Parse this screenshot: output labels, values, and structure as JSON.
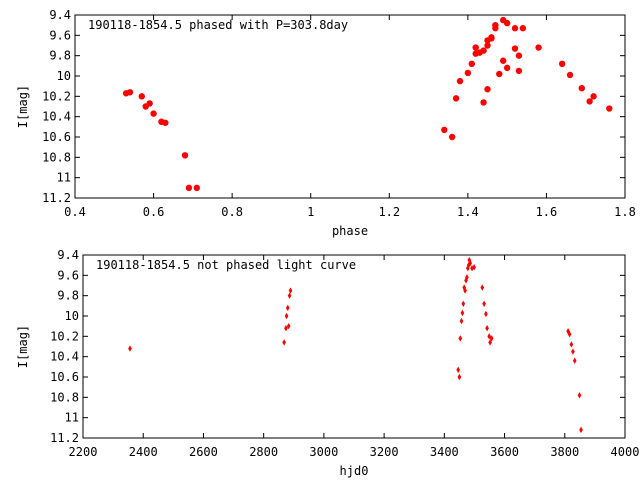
{
  "chart_data": [
    {
      "type": "scatter",
      "title": "190118-1854.5 phased with P=303.8day",
      "xlabel": "phase",
      "ylabel": "I[mag]",
      "xlim": [
        0.4,
        1.8
      ],
      "ylim": [
        9.4,
        11.2
      ],
      "y_inverted": true,
      "xticks": [
        0.4,
        0.6,
        0.8,
        1,
        1.2,
        1.4,
        1.6,
        1.8
      ],
      "xtick_labels": [
        "0.4",
        "0.6",
        "0.8",
        "1",
        "1.2",
        "1.4",
        "1.6",
        "1.8"
      ],
      "yticks": [
        9.4,
        9.6,
        9.8,
        10,
        10.2,
        10.4,
        10.6,
        10.8,
        11,
        11.2
      ],
      "ytick_labels": [
        "9.4",
        "9.6",
        "9.8",
        "10",
        "10.2",
        "10.4",
        "10.6",
        "10.8",
        "11",
        "11.2"
      ],
      "grid": false,
      "marker_color": "#ff0000",
      "marker": "filled-circle",
      "series": [
        {
          "x": [
            0.53,
            0.54,
            0.57,
            0.58,
            0.59,
            0.6,
            0.62,
            0.63,
            0.68,
            0.69,
            0.71,
            1.34,
            1.36,
            1.37,
            1.38,
            1.4,
            1.41,
            1.42,
            1.42,
            1.43,
            1.44,
            1.44,
            1.45,
            1.45,
            1.45,
            1.46,
            1.46,
            1.47,
            1.47,
            1.48,
            1.49,
            1.49,
            1.5,
            1.5,
            1.52,
            1.52,
            1.53,
            1.53,
            1.54,
            1.58,
            1.64,
            1.66,
            1.69,
            1.71,
            1.72,
            1.76
          ],
          "y": [
            10.17,
            10.16,
            10.2,
            10.3,
            10.27,
            10.37,
            10.45,
            10.46,
            10.78,
            11.1,
            11.1,
            10.53,
            10.6,
            10.22,
            10.05,
            9.97,
            9.88,
            9.72,
            9.78,
            9.77,
            9.75,
            10.26,
            9.7,
            9.65,
            10.13,
            9.62,
            9.63,
            9.5,
            9.53,
            9.98,
            9.45,
            9.85,
            9.48,
            9.92,
            9.53,
            9.73,
            9.8,
            9.95,
            9.53,
            9.72,
            9.88,
            9.99,
            10.12,
            10.25,
            10.2,
            10.32
          ]
        }
      ]
    },
    {
      "type": "scatter",
      "title": "190118-1854.5 not phased light curve",
      "xlabel": "hjd0",
      "ylabel": "I[mag]",
      "xlim": [
        2200,
        4000
      ],
      "ylim": [
        9.4,
        11.2
      ],
      "y_inverted": true,
      "xticks": [
        2200,
        2400,
        2600,
        2800,
        3000,
        3200,
        3400,
        3600,
        3800,
        4000
      ],
      "xtick_labels": [
        "2200",
        "2400",
        "2600",
        "2800",
        "3000",
        "3200",
        "3400",
        "3600",
        "3800",
        "4000"
      ],
      "yticks": [
        9.4,
        9.6,
        9.8,
        10,
        10.2,
        10.4,
        10.6,
        10.8,
        11,
        11.2
      ],
      "ytick_labels": [
        "9.4",
        "9.6",
        "9.8",
        "10",
        "10.2",
        "10.4",
        "10.6",
        "10.8",
        "11",
        "11.2"
      ],
      "grid": false,
      "marker_color": "#ff0000",
      "marker": "filled-diamond",
      "series": [
        {
          "x": [
            2356,
            2868,
            2874,
            2876,
            2880,
            2883,
            2886,
            2889,
            3446,
            3450,
            3453,
            3457,
            3460,
            3463,
            3466,
            3469,
            3472,
            3475,
            3478,
            3481,
            3483,
            3486,
            3492,
            3499,
            3526,
            3532,
            3538,
            3542,
            3549,
            3552,
            3557,
            3811,
            3816,
            3822,
            3827,
            3833,
            3849,
            3854
          ],
          "y": [
            10.32,
            10.26,
            10.12,
            10,
            9.92,
            10.1,
            9.8,
            9.75,
            10.53,
            10.6,
            10.22,
            10.05,
            9.97,
            9.88,
            9.72,
            9.75,
            9.65,
            9.62,
            9.53,
            9.5,
            9.45,
            9.48,
            9.53,
            9.52,
            9.72,
            9.88,
            9.98,
            10.12,
            10.2,
            10.26,
            10.22,
            10.15,
            10.18,
            10.28,
            10.35,
            10.44,
            10.78,
            11.12
          ]
        }
      ]
    }
  ]
}
